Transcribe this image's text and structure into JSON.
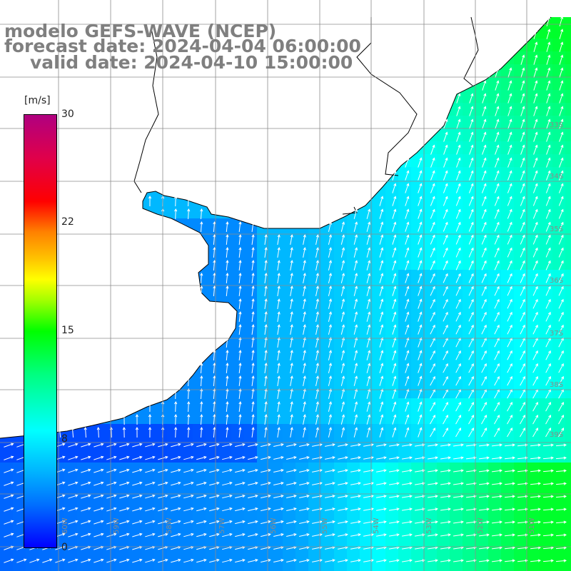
{
  "title": {
    "line1": "modelo GEFS-WAVE (NCEP)",
    "line2": "forecast date: 2024-04-04 06:00:00",
    "line3": "valid date: 2024-04-10 15:00:00"
  },
  "colorbar": {
    "unit": "[m/s]",
    "ticks": [
      "30",
      "22",
      "15",
      "8",
      "0"
    ],
    "tick_values": [
      30,
      22,
      15,
      8,
      0
    ],
    "range": [
      0,
      30
    ],
    "colors": [
      "#0000ff",
      "#00b8ff",
      "#00ffff",
      "#00ff00",
      "#ffff00",
      "#ff8000",
      "#ff0000",
      "#b00080"
    ]
  },
  "map": {
    "land_color": "#ffffff",
    "coast_color": "#000000",
    "grid_color": "#8c8c8c",
    "vector_color": "#ffffff",
    "lat_labels": [
      "33S",
      "34S",
      "35S",
      "36S",
      "37S",
      "38S",
      "39S"
    ],
    "lon_labels": [
      "60W",
      "59W",
      "58W",
      "57W",
      "56W",
      "55W",
      "54W",
      "53W",
      "52W",
      "51W"
    ]
  }
}
